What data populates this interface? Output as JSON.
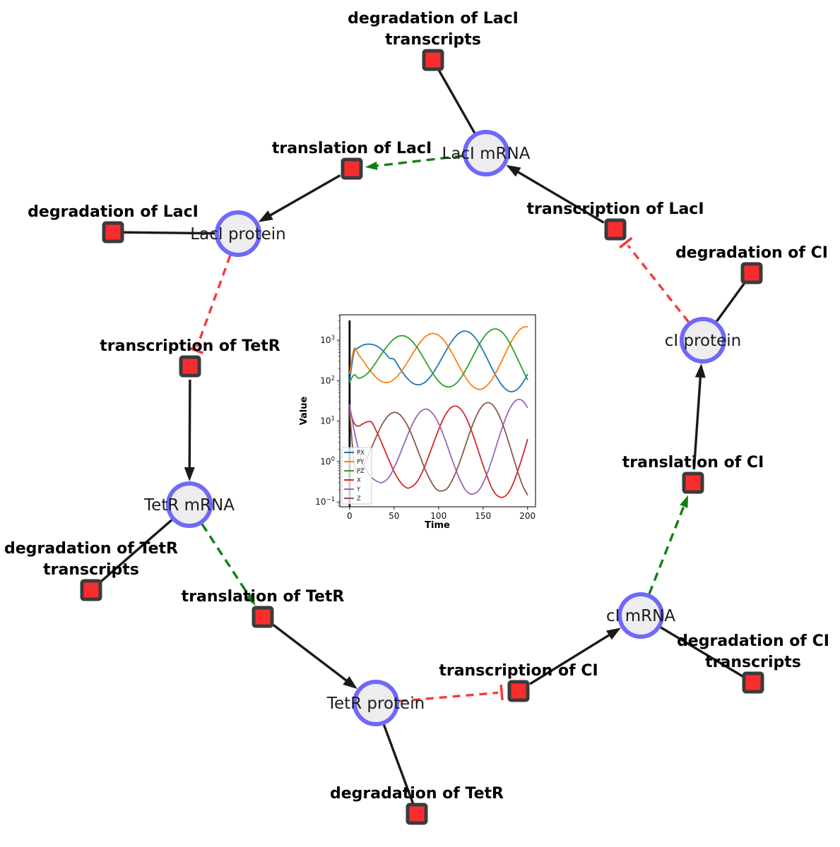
{
  "figure": {
    "background": "#ffffff",
    "description": "Repressilator gene regulatory network with simulation inset"
  },
  "colors": {
    "species_fill": "#ededf0",
    "species_stroke": "#6e69fa",
    "reaction_fill": "#f92d2d",
    "reaction_stroke": "#3b3b3b",
    "edge_black": "#1a1a1a",
    "edge_green": "#108010",
    "edge_red": "#f43b3b"
  },
  "network": {
    "species": {
      "laci_mrna": "LacI mRNA",
      "laci_protein": "LacI protein",
      "tetr_mrna": "TetR mRNA",
      "tetr_protein": "TetR protein",
      "ci_mrna": "cI mRNA",
      "ci_protein": "cI protein"
    },
    "reactions": {
      "deg_laci_transcripts": [
        "degradation of LacI",
        "transcripts"
      ],
      "translation_laci": [
        "translation of LacI"
      ],
      "deg_laci": [
        "degradation of LacI"
      ],
      "transcription_laci": [
        "transcription of LacI"
      ],
      "deg_ci": [
        "degradation of CI"
      ],
      "transcription_tetr": [
        "transcription of TetR"
      ],
      "translation_ci": [
        "translation of CI"
      ],
      "deg_tetr_transcripts": [
        "degradation of TetR",
        "transcripts"
      ],
      "translation_tetr": [
        "translation of TetR"
      ],
      "deg_ci_transcripts": [
        "degradation of CI",
        "transcripts"
      ],
      "transcription_ci": [
        "transcription of CI"
      ],
      "deg_tetr": [
        "degradation of TetR"
      ]
    },
    "edges": [
      {
        "from": "laci_mrna",
        "to": "deg_laci_transcripts",
        "type": "solid"
      },
      {
        "from": "laci_mrna",
        "to": "translation_laci",
        "type": "green"
      },
      {
        "from": "translation_laci",
        "to": "laci_protein",
        "type": "arrow"
      },
      {
        "from": "laci_protein",
        "to": "deg_laci",
        "type": "solid"
      },
      {
        "from": "laci_protein",
        "to": "transcription_tetr",
        "type": "inhibit"
      },
      {
        "from": "transcription_tetr",
        "to": "tetr_mrna",
        "type": "arrow"
      },
      {
        "from": "tetr_mrna",
        "to": "deg_tetr_transcripts",
        "type": "solid"
      },
      {
        "from": "tetr_mrna",
        "to": "translation_tetr",
        "type": "green"
      },
      {
        "from": "translation_tetr",
        "to": "tetr_protein",
        "type": "arrow"
      },
      {
        "from": "tetr_protein",
        "to": "deg_tetr",
        "type": "solid"
      },
      {
        "from": "tetr_protein",
        "to": "transcription_ci",
        "type": "inhibit"
      },
      {
        "from": "transcription_ci",
        "to": "ci_mrna",
        "type": "arrow"
      },
      {
        "from": "ci_mrna",
        "to": "deg_ci_transcripts",
        "type": "solid"
      },
      {
        "from": "ci_mrna",
        "to": "translation_ci",
        "type": "green"
      },
      {
        "from": "translation_ci",
        "to": "ci_protein",
        "type": "arrow"
      },
      {
        "from": "ci_protein",
        "to": "deg_ci",
        "type": "solid"
      },
      {
        "from": "ci_protein",
        "to": "transcription_laci",
        "type": "inhibit"
      },
      {
        "from": "transcription_laci",
        "to": "laci_mrna",
        "type": "arrow"
      }
    ]
  },
  "chart_data": {
    "type": "line",
    "title": "",
    "xlabel": "Time",
    "ylabel": "Value",
    "x_scale": "linear",
    "y_scale": "log",
    "xlim": [
      -11,
      209
    ],
    "ylim_log10": [
      -1.12,
      3.63
    ],
    "x_ticks": [
      0,
      50,
      100,
      150,
      200
    ],
    "y_tick_exponents": [
      -1,
      0,
      1,
      2,
      3
    ],
    "axvline_x": 0,
    "grid": false,
    "legend_position": "lower left",
    "x": [
      0,
      5,
      10,
      15,
      20,
      25,
      30,
      35,
      40,
      45,
      50,
      55,
      60,
      65,
      70,
      75,
      80,
      85,
      90,
      95,
      100,
      105,
      110,
      115,
      120,
      125,
      130,
      135,
      140,
      145,
      150,
      155,
      160,
      165,
      170,
      175,
      180,
      185,
      190,
      195,
      200
    ],
    "series": [
      {
        "name": "PX",
        "color": "#1f77b4",
        "values": [
          100,
          500,
          650,
          760,
          800,
          790,
          730,
          620,
          480,
          360,
          338,
          227,
          156,
          113,
          90,
          80,
          81,
          92,
          119,
          169,
          258,
          407,
          637,
          950,
          1301,
          1585,
          1686,
          1551,
          1238,
          872,
          561,
          340,
          203,
          126,
          84,
          63,
          54,
          55,
          66,
          91,
          143
        ]
      },
      {
        "name": "PY",
        "color": "#ff7f0e",
        "values": [
          150,
          612,
          447,
          313,
          219,
          157,
          119,
          98,
          90,
          93,
          108,
          139,
          195,
          286,
          435,
          651,
          927,
          1216,
          1424,
          1470,
          1328,
          1056,
          750,
          492,
          308,
          192,
          125,
          87,
          68,
          61,
          64,
          78,
          107,
          166,
          275,
          469,
          783,
          1221,
          1714,
          2084,
          2158
        ]
      },
      {
        "name": "PZ",
        "color": "#2ca02c",
        "values": [
          90,
          140,
          115,
          125,
          150,
          203,
          290,
          424,
          613,
          846,
          1084,
          1255,
          1293,
          1180,
          958,
          701,
          476,
          310,
          201,
          135,
          97,
          77,
          70,
          73,
          86,
          117,
          175,
          279,
          457,
          736,
          1114,
          1528,
          1836,
          1899,
          1681,
          1283,
          859,
          525,
          305,
          177,
          107
        ]
      },
      {
        "name": "X",
        "color": "#d62728",
        "values": [
          20,
          9,
          7.5,
          8.6,
          9.6,
          9.3,
          5.7,
          3.3,
          1.8,
          0.99,
          0.56,
          0.36,
          0.26,
          0.22,
          0.24,
          0.3,
          0.46,
          0.81,
          1.57,
          3.14,
          6.1,
          11,
          17.2,
          22.3,
          23.4,
          19.7,
          13.5,
          7.6,
          3.8,
          1.77,
          0.82,
          0.41,
          0.22,
          0.15,
          0.13,
          0.14,
          0.19,
          0.33,
          0.67,
          1.48,
          3.5
        ]
      },
      {
        "name": "Y",
        "color": "#9467bd",
        "values": [
          25,
          6,
          2,
          0.9,
          0.55,
          0.4,
          0.33,
          0.3,
          0.33,
          0.43,
          0.7,
          1.24,
          2.34,
          4.4,
          7.9,
          12.7,
          17.4,
          19.8,
          18.3,
          13.8,
          8.8,
          4.8,
          2.39,
          1.16,
          0.58,
          0.32,
          0.2,
          0.16,
          0.16,
          0.19,
          0.29,
          0.53,
          1.1,
          2.44,
          5.4,
          11.2,
          20.1,
          29.6,
          34.4,
          31.1,
          21.8
        ]
      },
      {
        "name": "Z",
        "color": "#8c564b",
        "values": [
          18,
          1,
          0.5,
          0.76,
          1.29,
          2.3,
          4.1,
          7.1,
          10.9,
          14.6,
          16.4,
          15.3,
          11.8,
          7.8,
          4.5,
          2.36,
          1.21,
          0.63,
          0.37,
          0.24,
          0.19,
          0.19,
          0.22,
          0.33,
          0.58,
          1.14,
          2.41,
          5.1,
          10,
          17.2,
          24.8,
          28.6,
          26.1,
          18.7,
          11,
          5.5,
          2.46,
          1.07,
          0.48,
          0.24,
          0.15
        ]
      }
    ]
  }
}
